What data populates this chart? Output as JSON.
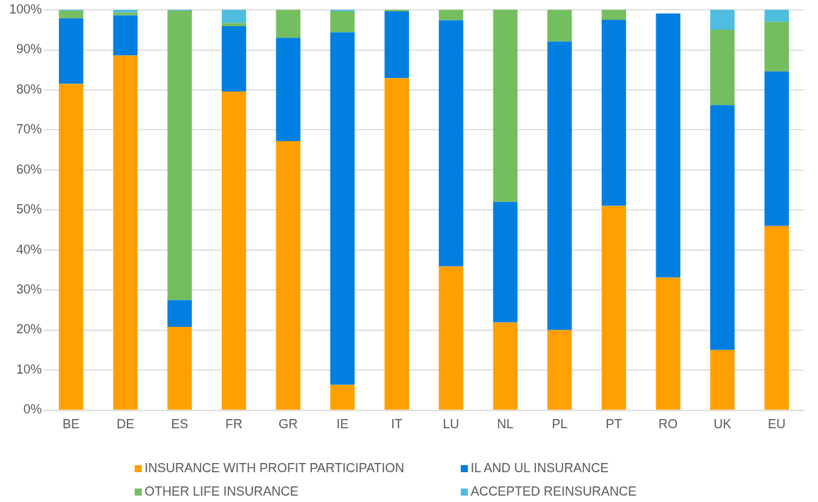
{
  "chart_data": {
    "type": "bar",
    "stacked": true,
    "categories": [
      "BE",
      "DE",
      "ES",
      "FR",
      "GR",
      "IE",
      "IT",
      "LU",
      "NL",
      "PL",
      "PT",
      "RO",
      "UK",
      "EU"
    ],
    "series": [
      {
        "name": "INSURANCE WITH PROFIT PARTICIPATION",
        "color": "#ffa000",
        "values": [
          81.5,
          88.6,
          20.8,
          79.6,
          67.2,
          6.3,
          82.9,
          35.9,
          21.9,
          20.0,
          51.0,
          33.1,
          15.0,
          46.0
        ]
      },
      {
        "name": "IL AND UL INSURANCE",
        "color": "#007fe0",
        "values": [
          16.4,
          10.0,
          6.7,
          16.3,
          25.8,
          88.1,
          16.7,
          61.5,
          30.1,
          72.1,
          46.5,
          66.0,
          61.2,
          38.6
        ]
      },
      {
        "name": "OTHER LIFE INSURANCE",
        "color": "#75be5f",
        "values": [
          1.9,
          0.7,
          72.3,
          0.8,
          7.0,
          5.2,
          0.4,
          2.6,
          48.1,
          7.9,
          2.5,
          null,
          18.8,
          12.4
        ]
      },
      {
        "name": "ACCEPTED REINSURANCE",
        "color": "#4fbde0",
        "values": [
          0.2,
          0.7,
          0.2,
          3.3,
          0,
          0.4,
          0,
          null,
          null,
          null,
          0,
          0,
          5.0,
          3.0
        ]
      }
    ],
    "ylim": [
      0,
      100
    ],
    "yticks": [
      {
        "value": 0,
        "label": "0%"
      },
      {
        "value": 10,
        "label": "10%"
      },
      {
        "value": 20,
        "label": "20%"
      },
      {
        "value": 30,
        "label": "30%"
      },
      {
        "value": 40,
        "label": "40%"
      },
      {
        "value": 50,
        "label": "50%"
      },
      {
        "value": 60,
        "label": "60%"
      },
      {
        "value": 70,
        "label": "70%"
      },
      {
        "value": 80,
        "label": "80%"
      },
      {
        "value": 90,
        "label": "90%"
      },
      {
        "value": 100,
        "label": "100%"
      }
    ],
    "grid": "y",
    "legend": "bottom"
  }
}
